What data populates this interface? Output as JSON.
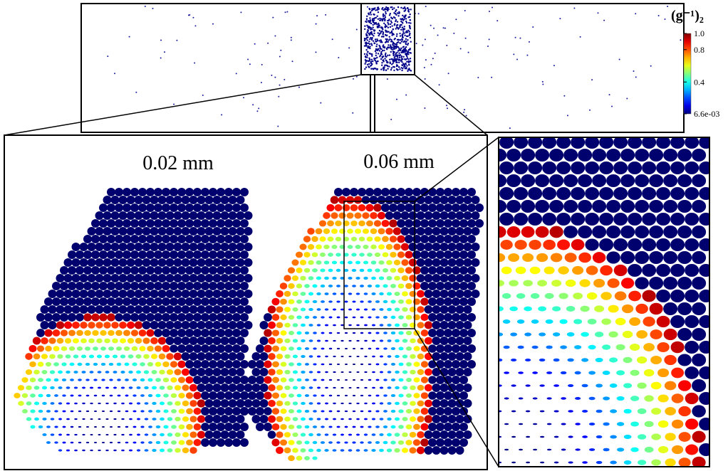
{
  "panels": [
    {
      "label": "0.02 mm"
    },
    {
      "label": "0.06 mm"
    }
  ],
  "colorbar": {
    "title": "(g⁻¹)₂",
    "range": [
      0.0066,
      1
    ],
    "ticks": [
      {
        "value": 1,
        "label": "1.0"
      },
      {
        "value": 0.8,
        "label": "0.8"
      },
      {
        "value": 0.4,
        "label": "0.4"
      },
      {
        "value": 0.0066,
        "label": "6.6e-03"
      }
    ]
  }
}
